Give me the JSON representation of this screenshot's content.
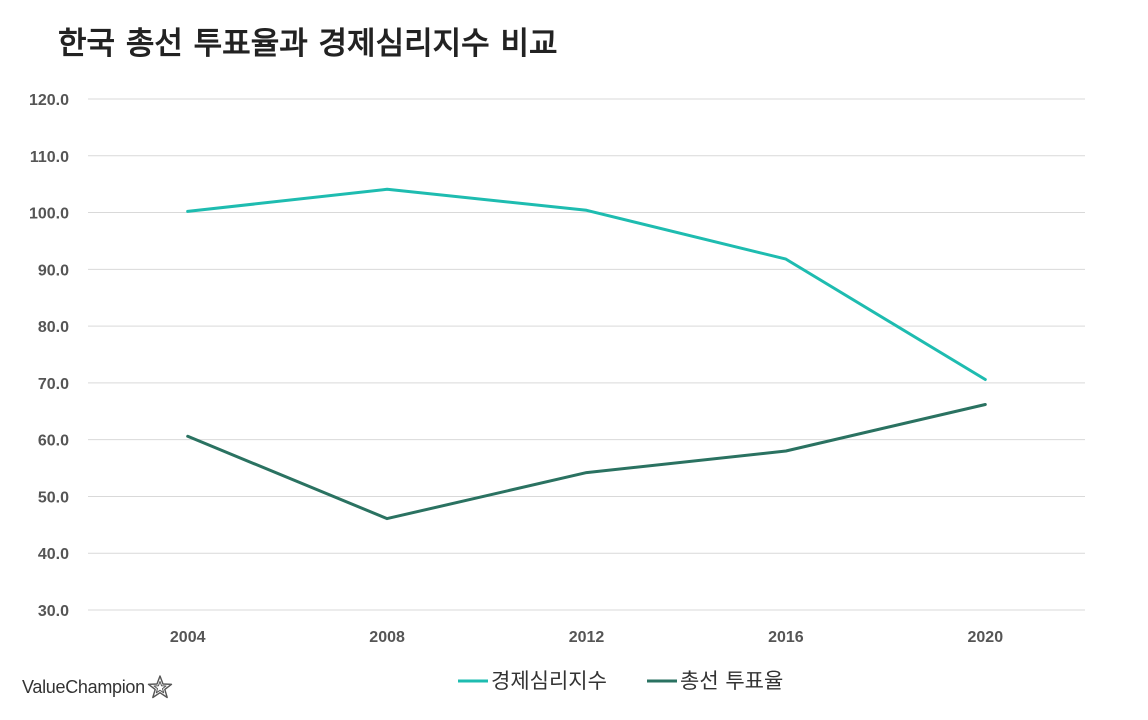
{
  "title": "한국 총선 투표율과 경제심리지수 비교",
  "brand": "ValueChampion",
  "colors": {
    "econ": "#1ebcb0",
    "turnout": "#2a7261",
    "grid": "#d9d9d9",
    "axis_text": "#555555"
  },
  "chart_data": {
    "type": "line",
    "title": "한국 총선 투표율과 경제심리지수 비교",
    "xlabel": "",
    "ylabel": "",
    "categories": [
      "2004",
      "2008",
      "2012",
      "2016",
      "2020"
    ],
    "series": [
      {
        "name": "경제심리지수",
        "values": [
          100.2,
          104.1,
          100.4,
          91.8,
          70.6
        ]
      },
      {
        "name": "총선 투표율",
        "values": [
          60.6,
          46.1,
          54.2,
          58.0,
          66.2
        ]
      }
    ],
    "ylim": [
      30,
      120
    ],
    "yticks": [
      30,
      40,
      50,
      60,
      70,
      80,
      90,
      100,
      110,
      120
    ],
    "ytick_labels": [
      "30.0",
      "40.0",
      "50.0",
      "60.0",
      "70.0",
      "80.0",
      "90.0",
      "100.0",
      "110.0",
      "120.0"
    ],
    "grid": true,
    "legend_position": "bottom"
  }
}
